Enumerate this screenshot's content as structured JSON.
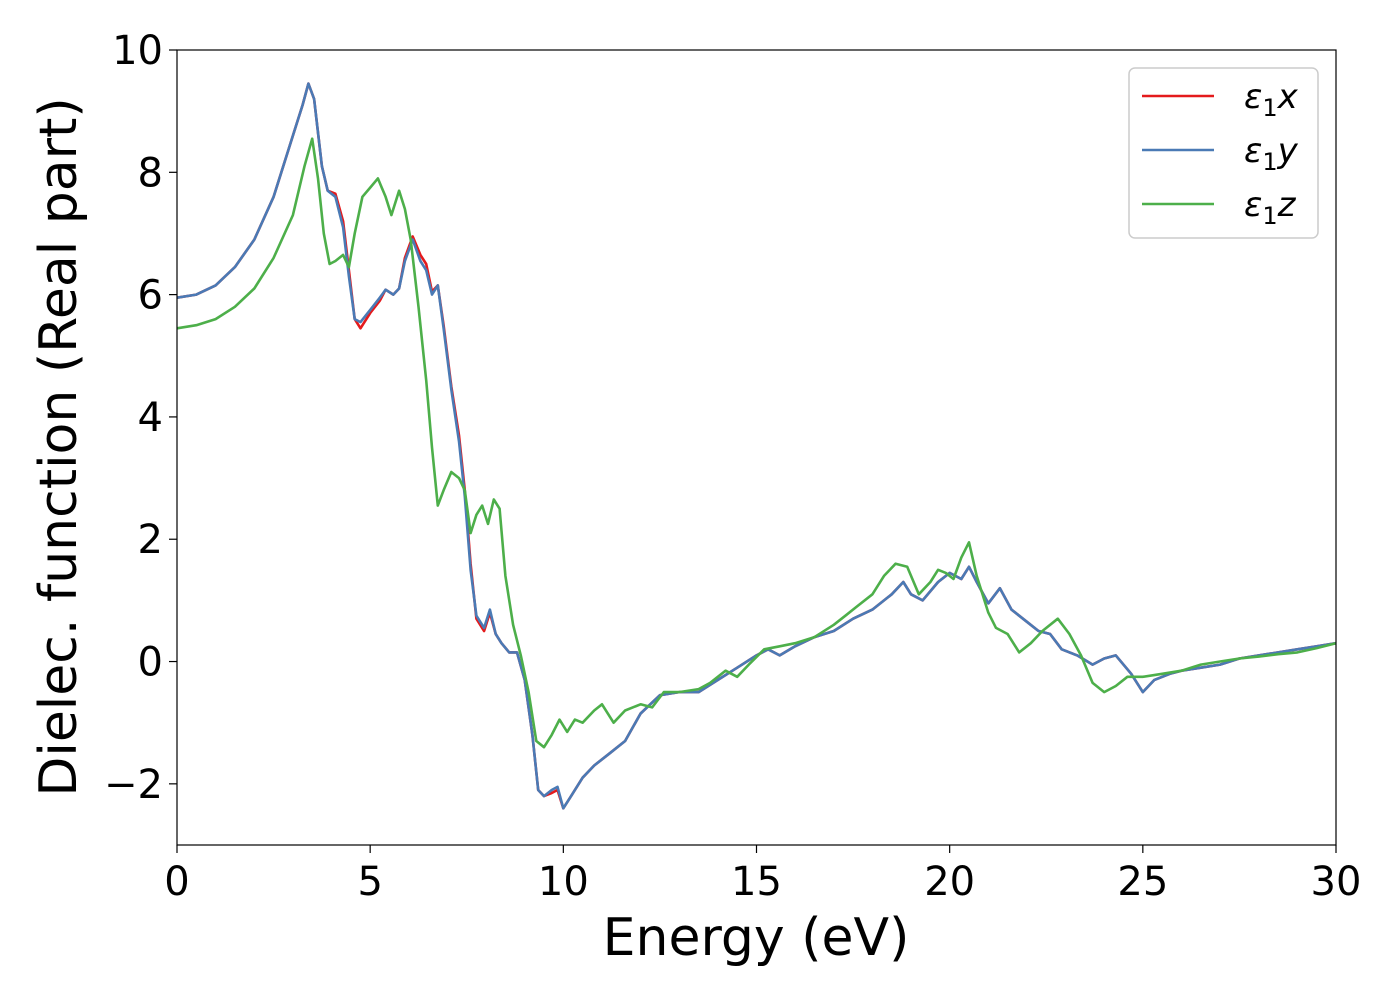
{
  "chart_data": {
    "type": "line",
    "xlabel": "Energy (eV)",
    "ylabel": "Dielec. function (Real part)",
    "xlim": [
      0,
      30
    ],
    "ylim": [
      -3,
      10
    ],
    "xticks": [
      0,
      5,
      10,
      15,
      20,
      25,
      30
    ],
    "yticks": [
      -2,
      0,
      2,
      4,
      6,
      8,
      10
    ],
    "xtick_labels": [
      "0",
      "5",
      "10",
      "15",
      "20",
      "25",
      "30"
    ],
    "ytick_labels": [
      "−2",
      "0",
      "2",
      "4",
      "6",
      "8",
      "10"
    ],
    "grid": false,
    "legend": {
      "position": "top-right"
    },
    "series": [
      {
        "name": "ε₁x",
        "legend_base": "ε",
        "legend_sub": "1",
        "legend_tail": "x",
        "color": "#e41a1c",
        "points": [
          [
            0,
            5.95
          ],
          [
            0.5,
            6.0
          ],
          [
            1.0,
            6.15
          ],
          [
            1.5,
            6.45
          ],
          [
            2.0,
            6.9
          ],
          [
            2.5,
            7.6
          ],
          [
            3.0,
            8.6
          ],
          [
            3.25,
            9.1
          ],
          [
            3.4,
            9.45
          ],
          [
            3.55,
            9.2
          ],
          [
            3.75,
            8.1
          ],
          [
            3.9,
            7.7
          ],
          [
            4.1,
            7.65
          ],
          [
            4.3,
            7.2
          ],
          [
            4.45,
            6.4
          ],
          [
            4.6,
            5.6
          ],
          [
            4.75,
            5.45
          ],
          [
            5.0,
            5.7
          ],
          [
            5.25,
            5.9
          ],
          [
            5.4,
            6.08
          ],
          [
            5.6,
            6.0
          ],
          [
            5.75,
            6.1
          ],
          [
            5.9,
            6.6
          ],
          [
            6.1,
            6.95
          ],
          [
            6.3,
            6.65
          ],
          [
            6.45,
            6.5
          ],
          [
            6.6,
            6.05
          ],
          [
            6.75,
            6.15
          ],
          [
            6.9,
            5.5
          ],
          [
            7.1,
            4.5
          ],
          [
            7.3,
            3.7
          ],
          [
            7.45,
            2.8
          ],
          [
            7.6,
            1.6
          ],
          [
            7.75,
            0.7
          ],
          [
            7.95,
            0.5
          ],
          [
            8.1,
            0.8
          ],
          [
            8.25,
            0.45
          ],
          [
            8.4,
            0.3
          ],
          [
            8.6,
            0.15
          ],
          [
            8.8,
            0.15
          ],
          [
            9.0,
            -0.3
          ],
          [
            9.2,
            -1.2
          ],
          [
            9.35,
            -2.1
          ],
          [
            9.5,
            -2.2
          ],
          [
            9.7,
            -2.15
          ],
          [
            9.85,
            -2.1
          ],
          [
            10.0,
            -2.4
          ],
          [
            10.2,
            -2.2
          ],
          [
            10.5,
            -1.9
          ],
          [
            10.8,
            -1.7
          ],
          [
            11.2,
            -1.5
          ],
          [
            11.6,
            -1.3
          ],
          [
            12.0,
            -0.85
          ],
          [
            12.5,
            -0.55
          ],
          [
            13.0,
            -0.5
          ],
          [
            13.5,
            -0.5
          ],
          [
            14.0,
            -0.3
          ],
          [
            14.5,
            -0.1
          ],
          [
            15.0,
            0.1
          ],
          [
            15.3,
            0.2
          ],
          [
            15.6,
            0.1
          ],
          [
            16.0,
            0.25
          ],
          [
            16.5,
            0.4
          ],
          [
            17.0,
            0.5
          ],
          [
            17.5,
            0.7
          ],
          [
            18.0,
            0.85
          ],
          [
            18.5,
            1.1
          ],
          [
            18.8,
            1.3
          ],
          [
            19.0,
            1.1
          ],
          [
            19.3,
            1.0
          ],
          [
            19.7,
            1.3
          ],
          [
            20.0,
            1.45
          ],
          [
            20.3,
            1.35
          ],
          [
            20.5,
            1.55
          ],
          [
            20.7,
            1.3
          ],
          [
            21.0,
            0.95
          ],
          [
            21.3,
            1.2
          ],
          [
            21.6,
            0.85
          ],
          [
            22.0,
            0.65
          ],
          [
            22.3,
            0.5
          ],
          [
            22.6,
            0.45
          ],
          [
            22.9,
            0.2
          ],
          [
            23.3,
            0.1
          ],
          [
            23.7,
            -0.05
          ],
          [
            24.0,
            0.05
          ],
          [
            24.3,
            0.1
          ],
          [
            24.7,
            -0.2
          ],
          [
            25.0,
            -0.5
          ],
          [
            25.3,
            -0.3
          ],
          [
            25.7,
            -0.2
          ],
          [
            26.0,
            -0.15
          ],
          [
            26.5,
            -0.1
          ],
          [
            27.0,
            -0.05
          ],
          [
            27.5,
            0.05
          ],
          [
            28.0,
            0.1
          ],
          [
            28.5,
            0.15
          ],
          [
            29.0,
            0.2
          ],
          [
            29.5,
            0.25
          ],
          [
            30.0,
            0.3
          ]
        ]
      },
      {
        "name": "ε₁y",
        "legend_base": "ε",
        "legend_sub": "1",
        "legend_tail": "y",
        "color": "#4a7ab5",
        "points": [
          [
            0,
            5.95
          ],
          [
            0.5,
            6.0
          ],
          [
            1.0,
            6.15
          ],
          [
            1.5,
            6.45
          ],
          [
            2.0,
            6.9
          ],
          [
            2.5,
            7.6
          ],
          [
            3.0,
            8.6
          ],
          [
            3.25,
            9.1
          ],
          [
            3.4,
            9.45
          ],
          [
            3.55,
            9.2
          ],
          [
            3.75,
            8.1
          ],
          [
            3.9,
            7.7
          ],
          [
            4.1,
            7.6
          ],
          [
            4.3,
            7.1
          ],
          [
            4.45,
            6.3
          ],
          [
            4.6,
            5.6
          ],
          [
            4.75,
            5.55
          ],
          [
            5.0,
            5.75
          ],
          [
            5.25,
            5.95
          ],
          [
            5.4,
            6.08
          ],
          [
            5.6,
            6.0
          ],
          [
            5.75,
            6.1
          ],
          [
            5.9,
            6.55
          ],
          [
            6.1,
            6.9
          ],
          [
            6.3,
            6.55
          ],
          [
            6.45,
            6.4
          ],
          [
            6.6,
            6.0
          ],
          [
            6.75,
            6.15
          ],
          [
            6.9,
            5.45
          ],
          [
            7.1,
            4.45
          ],
          [
            7.3,
            3.6
          ],
          [
            7.45,
            2.7
          ],
          [
            7.6,
            1.5
          ],
          [
            7.75,
            0.75
          ],
          [
            7.95,
            0.55
          ],
          [
            8.1,
            0.85
          ],
          [
            8.25,
            0.45
          ],
          [
            8.4,
            0.3
          ],
          [
            8.6,
            0.15
          ],
          [
            8.8,
            0.15
          ],
          [
            9.0,
            -0.3
          ],
          [
            9.2,
            -1.2
          ],
          [
            9.35,
            -2.1
          ],
          [
            9.5,
            -2.2
          ],
          [
            9.7,
            -2.1
          ],
          [
            9.85,
            -2.05
          ],
          [
            10.0,
            -2.4
          ],
          [
            10.2,
            -2.2
          ],
          [
            10.5,
            -1.9
          ],
          [
            10.8,
            -1.7
          ],
          [
            11.2,
            -1.5
          ],
          [
            11.6,
            -1.3
          ],
          [
            12.0,
            -0.85
          ],
          [
            12.5,
            -0.55
          ],
          [
            13.0,
            -0.5
          ],
          [
            13.5,
            -0.5
          ],
          [
            14.0,
            -0.3
          ],
          [
            14.5,
            -0.1
          ],
          [
            15.0,
            0.1
          ],
          [
            15.3,
            0.2
          ],
          [
            15.6,
            0.1
          ],
          [
            16.0,
            0.25
          ],
          [
            16.5,
            0.4
          ],
          [
            17.0,
            0.5
          ],
          [
            17.5,
            0.7
          ],
          [
            18.0,
            0.85
          ],
          [
            18.5,
            1.1
          ],
          [
            18.8,
            1.3
          ],
          [
            19.0,
            1.1
          ],
          [
            19.3,
            1.0
          ],
          [
            19.7,
            1.3
          ],
          [
            20.0,
            1.45
          ],
          [
            20.3,
            1.35
          ],
          [
            20.5,
            1.55
          ],
          [
            20.7,
            1.3
          ],
          [
            21.0,
            0.95
          ],
          [
            21.3,
            1.2
          ],
          [
            21.6,
            0.85
          ],
          [
            22.0,
            0.65
          ],
          [
            22.3,
            0.5
          ],
          [
            22.6,
            0.45
          ],
          [
            22.9,
            0.2
          ],
          [
            23.3,
            0.1
          ],
          [
            23.7,
            -0.05
          ],
          [
            24.0,
            0.05
          ],
          [
            24.3,
            0.1
          ],
          [
            24.7,
            -0.2
          ],
          [
            25.0,
            -0.5
          ],
          [
            25.3,
            -0.3
          ],
          [
            25.7,
            -0.2
          ],
          [
            26.0,
            -0.15
          ],
          [
            26.5,
            -0.1
          ],
          [
            27.0,
            -0.05
          ],
          [
            27.5,
            0.05
          ],
          [
            28.0,
            0.1
          ],
          [
            28.5,
            0.15
          ],
          [
            29.0,
            0.2
          ],
          [
            29.5,
            0.25
          ],
          [
            30.0,
            0.3
          ]
        ]
      },
      {
        "name": "ε₁z",
        "legend_base": "ε",
        "legend_sub": "1",
        "legend_tail": "z",
        "color": "#4daf4a",
        "points": [
          [
            0,
            5.45
          ],
          [
            0.5,
            5.5
          ],
          [
            1.0,
            5.6
          ],
          [
            1.5,
            5.8
          ],
          [
            2.0,
            6.1
          ],
          [
            2.5,
            6.6
          ],
          [
            3.0,
            7.3
          ],
          [
            3.3,
            8.1
          ],
          [
            3.5,
            8.55
          ],
          [
            3.65,
            7.9
          ],
          [
            3.8,
            7.0
          ],
          [
            3.95,
            6.5
          ],
          [
            4.1,
            6.55
          ],
          [
            4.3,
            6.65
          ],
          [
            4.45,
            6.45
          ],
          [
            4.6,
            7.0
          ],
          [
            4.8,
            7.6
          ],
          [
            5.0,
            7.75
          ],
          [
            5.2,
            7.9
          ],
          [
            5.4,
            7.6
          ],
          [
            5.55,
            7.3
          ],
          [
            5.75,
            7.7
          ],
          [
            5.9,
            7.4
          ],
          [
            6.05,
            6.9
          ],
          [
            6.25,
            5.8
          ],
          [
            6.45,
            4.6
          ],
          [
            6.6,
            3.5
          ],
          [
            6.75,
            2.55
          ],
          [
            6.9,
            2.8
          ],
          [
            7.1,
            3.1
          ],
          [
            7.3,
            3.0
          ],
          [
            7.45,
            2.8
          ],
          [
            7.6,
            2.1
          ],
          [
            7.75,
            2.4
          ],
          [
            7.9,
            2.55
          ],
          [
            8.05,
            2.25
          ],
          [
            8.2,
            2.65
          ],
          [
            8.35,
            2.5
          ],
          [
            8.5,
            1.4
          ],
          [
            8.7,
            0.6
          ],
          [
            8.9,
            0.1
          ],
          [
            9.1,
            -0.5
          ],
          [
            9.3,
            -1.3
          ],
          [
            9.5,
            -1.4
          ],
          [
            9.7,
            -1.2
          ],
          [
            9.9,
            -0.95
          ],
          [
            10.1,
            -1.15
          ],
          [
            10.3,
            -0.95
          ],
          [
            10.5,
            -1.0
          ],
          [
            10.8,
            -0.8
          ],
          [
            11.0,
            -0.7
          ],
          [
            11.3,
            -1.0
          ],
          [
            11.6,
            -0.8
          ],
          [
            12.0,
            -0.7
          ],
          [
            12.3,
            -0.75
          ],
          [
            12.6,
            -0.5
          ],
          [
            13.0,
            -0.5
          ],
          [
            13.5,
            -0.45
          ],
          [
            13.8,
            -0.35
          ],
          [
            14.2,
            -0.15
          ],
          [
            14.5,
            -0.25
          ],
          [
            14.8,
            -0.05
          ],
          [
            15.2,
            0.2
          ],
          [
            15.6,
            0.25
          ],
          [
            16.0,
            0.3
          ],
          [
            16.5,
            0.4
          ],
          [
            17.0,
            0.6
          ],
          [
            17.3,
            0.75
          ],
          [
            17.6,
            0.9
          ],
          [
            18.0,
            1.1
          ],
          [
            18.3,
            1.4
          ],
          [
            18.6,
            1.6
          ],
          [
            18.9,
            1.55
          ],
          [
            19.2,
            1.1
          ],
          [
            19.5,
            1.3
          ],
          [
            19.7,
            1.5
          ],
          [
            19.9,
            1.45
          ],
          [
            20.1,
            1.35
          ],
          [
            20.3,
            1.7
          ],
          [
            20.5,
            1.95
          ],
          [
            20.7,
            1.4
          ],
          [
            21.0,
            0.8
          ],
          [
            21.2,
            0.55
          ],
          [
            21.5,
            0.45
          ],
          [
            21.8,
            0.15
          ],
          [
            22.1,
            0.3
          ],
          [
            22.4,
            0.5
          ],
          [
            22.8,
            0.7
          ],
          [
            23.1,
            0.45
          ],
          [
            23.4,
            0.1
          ],
          [
            23.7,
            -0.35
          ],
          [
            24.0,
            -0.5
          ],
          [
            24.3,
            -0.4
          ],
          [
            24.6,
            -0.25
          ],
          [
            25.0,
            -0.25
          ],
          [
            25.5,
            -0.2
          ],
          [
            26.0,
            -0.15
          ],
          [
            26.5,
            -0.05
          ],
          [
            27.0,
            0.0
          ],
          [
            27.5,
            0.05
          ],
          [
            28.0,
            0.08
          ],
          [
            28.5,
            0.12
          ],
          [
            29.0,
            0.15
          ],
          [
            29.5,
            0.22
          ],
          [
            30.0,
            0.3
          ]
        ]
      }
    ]
  }
}
